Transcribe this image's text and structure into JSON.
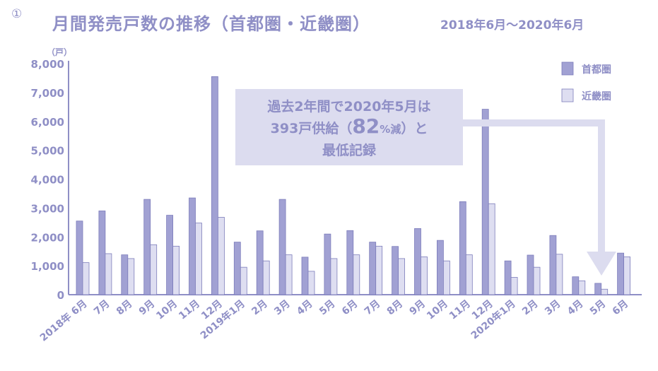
{
  "header": {
    "circle_number": "①",
    "title": "月間発売戸数の推移（首都圏・近畿圏）",
    "period": "2018年6月～2020年6月"
  },
  "colors": {
    "shutoken": "#a1a1d3",
    "kinki": "#dedef1",
    "bar_stroke": "#7d7dbb",
    "text": "#8f8fc6",
    "axis": "#8f8fc6",
    "callout_bg": "#dcdcef",
    "arrow": "#dcdcef"
  },
  "callout": {
    "line1": "過去2年間で2020年5月は",
    "line2_prefix": "393戸供給（",
    "line2_big": "82",
    "line2_pct": "%減",
    "line2_suffix": "）と",
    "line3": "最低記録"
  },
  "chart_data": {
    "type": "bar",
    "unit_label": "（戸）",
    "ylim": [
      0,
      8000
    ],
    "yticks": [
      "8,000",
      "7,000",
      "6,000",
      "5,000",
      "4,000",
      "3,000",
      "2,000",
      "1,000",
      "0"
    ],
    "categories": [
      "2018年 6月",
      "7月",
      "8月",
      "9月",
      "10月",
      "11月",
      "12月",
      "2019年1月",
      "2月",
      "3月",
      "4月",
      "5月",
      "6月",
      "7月",
      "8月",
      "9月",
      "10月",
      "11月",
      "12月",
      "2020年1月",
      "2月",
      "3月",
      "4月",
      "5月",
      "6月"
    ],
    "series": [
      {
        "name": "首都圏",
        "values": [
          2550,
          2900,
          1380,
          3300,
          2750,
          3350,
          7550,
          1820,
          2210,
          3300,
          1300,
          2100,
          2220,
          1820,
          1670,
          2290,
          1880,
          3220,
          6420,
          1170,
          1370,
          2050,
          620,
          393,
          1440
        ]
      },
      {
        "name": "近畿圏",
        "values": [
          1110,
          1420,
          1250,
          1730,
          1680,
          2480,
          2680,
          950,
          1170,
          1380,
          810,
          1250,
          1380,
          1680,
          1250,
          1310,
          1170,
          1380,
          3150,
          600,
          950,
          1400,
          480,
          190,
          1310
        ]
      }
    ],
    "legend_position": "top-right"
  }
}
